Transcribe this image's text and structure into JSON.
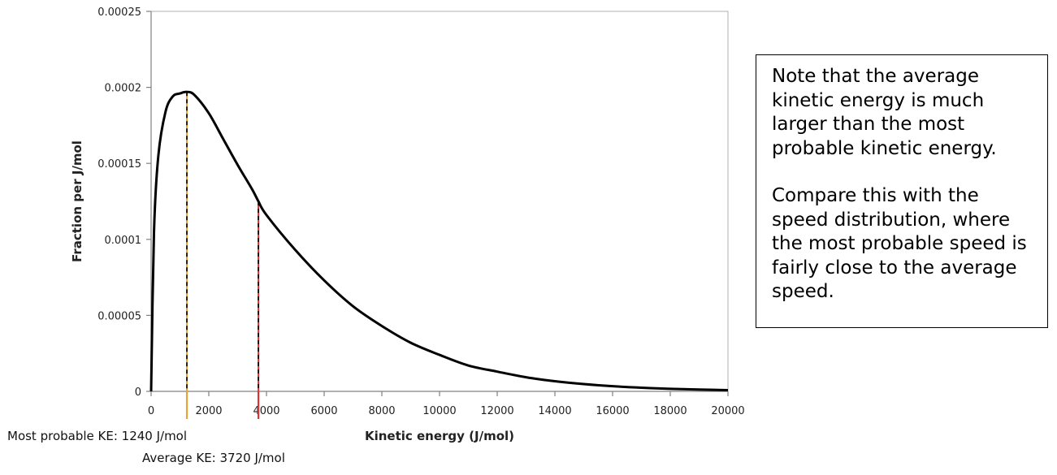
{
  "chart_data": {
    "type": "line",
    "title": "",
    "xlabel": "Kinetic energy (J/mol)",
    "ylabel": "Fraction per J/mol",
    "xlim": [
      0,
      20000
    ],
    "ylim": [
      0,
      0.00025
    ],
    "x_ticks": [
      0,
      2000,
      4000,
      6000,
      8000,
      10000,
      12000,
      14000,
      16000,
      18000,
      20000
    ],
    "y_ticks": [
      {
        "value": 0,
        "label": "0"
      },
      {
        "value": 5e-05,
        "label": "0.00005"
      },
      {
        "value": 0.0001,
        "label": "0.0001"
      },
      {
        "value": 0.00015,
        "label": "0.00015"
      },
      {
        "value": 0.0002,
        "label": "0.0002"
      },
      {
        "value": 0.00025,
        "label": "0.00025"
      }
    ],
    "grid": false,
    "series": [
      {
        "x": [
          0,
          100,
          250,
          500,
          750,
          1000,
          1240,
          1500,
          2000,
          2500,
          3000,
          3500,
          3720,
          4000,
          5000,
          6000,
          7000,
          8000,
          9000,
          10000,
          11000,
          12000,
          13000,
          14000,
          15000,
          16000,
          17000,
          18000,
          19000,
          20000
        ],
        "y": [
          0,
          0.000105,
          0.000155,
          0.000184,
          0.000194,
          0.000196,
          0.000197,
          0.000195,
          0.000183,
          0.000166,
          0.000149,
          0.000133,
          0.000125,
          0.000116,
          9.3e-05,
          7.3e-05,
          5.6e-05,
          4.3e-05,
          3.2e-05,
          2.4e-05,
          1.7e-05,
          1.3e-05,
          9.3e-06,
          6.7e-06,
          4.8e-06,
          3.4e-06,
          2.4e-06,
          1.7e-06,
          1.2e-06,
          8e-07
        ],
        "color": "#000000"
      }
    ],
    "markers": [
      {
        "x": 1240,
        "label": "Most probable KE: 1240 J/mol",
        "color": "#e8a33a"
      },
      {
        "x": 3720,
        "label": "Average KE: 3720 J/mol",
        "color": "#e03030"
      }
    ]
  },
  "note": {
    "paragraph1": "Note that the average kinetic energy is much larger than the most probable kinetic energy.",
    "paragraph2": "Compare this with the speed distribution, where the most probable speed is fairly close to the average speed."
  }
}
